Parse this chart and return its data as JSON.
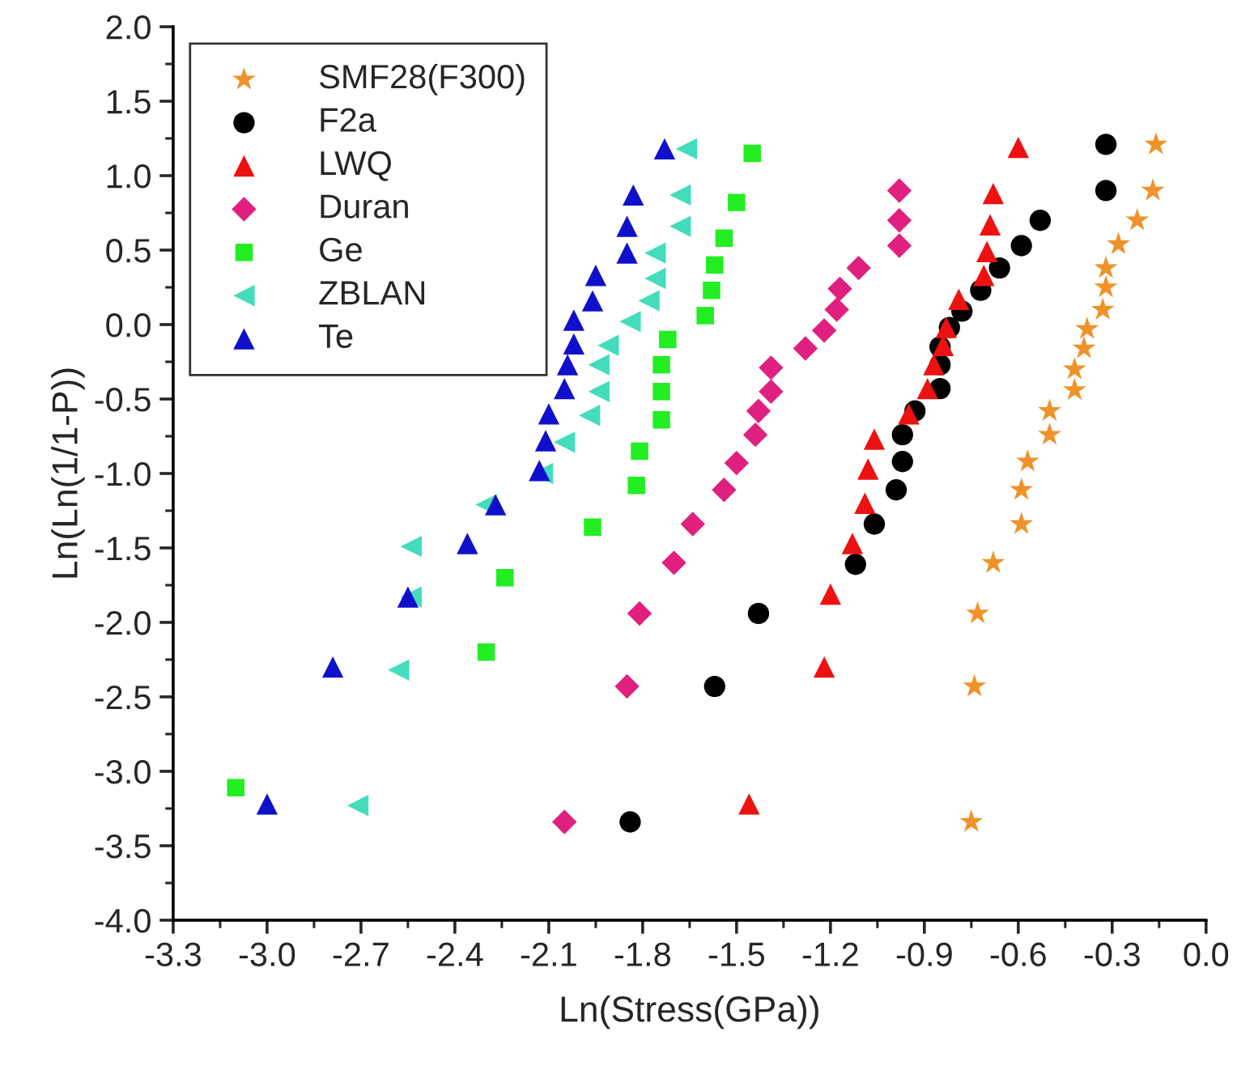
{
  "chart_data": {
    "type": "scatter",
    "xlabel": "Ln(Stress(GPa))",
    "ylabel": "Ln(Ln(1/1-P))",
    "xlim": [
      -3.3,
      0.0
    ],
    "xticks": [
      {
        "value": -3.3,
        "label": "-3.3"
      },
      {
        "value": -3.0,
        "label": "-3.0"
      },
      {
        "value": -2.7,
        "label": "-2.7"
      },
      {
        "value": -2.4,
        "label": "-2.4"
      },
      {
        "value": -2.1,
        "label": "-2.1"
      },
      {
        "value": -1.8,
        "label": "-1.8"
      },
      {
        "value": -1.5,
        "label": "-1.5"
      },
      {
        "value": -1.2,
        "label": "-1.2"
      },
      {
        "value": -0.9,
        "label": "-0.9"
      },
      {
        "value": -0.6,
        "label": "-0.6"
      },
      {
        "value": -0.3,
        "label": "-0.3"
      },
      {
        "value": 0.0,
        "label": "0.0"
      }
    ],
    "ylim": [
      -4.0,
      2.0
    ],
    "yticks": [
      {
        "value": -4.0,
        "label": "-4.0"
      },
      {
        "value": -3.5,
        "label": "-3.5"
      },
      {
        "value": -3.0,
        "label": "-3.0"
      },
      {
        "value": -2.5,
        "label": "-2.5"
      },
      {
        "value": -2.0,
        "label": "-2.0"
      },
      {
        "value": -1.5,
        "label": "-1.5"
      },
      {
        "value": -1.0,
        "label": "-1.0"
      },
      {
        "value": -0.5,
        "label": "-0.5"
      },
      {
        "value": 0.0,
        "label": "0.0"
      },
      {
        "value": 0.5,
        "label": "0.5"
      },
      {
        "value": 1.0,
        "label": "1.0"
      },
      {
        "value": 1.5,
        "label": "1.5"
      },
      {
        "value": 2.0,
        "label": "2.0"
      }
    ],
    "grid": false,
    "legend": "top left",
    "series": [
      {
        "name": "SMF28(F300)",
        "color": "#f0922a",
        "marker": "star",
        "x": [
          -0.16,
          -0.17,
          -0.22,
          -0.28,
          -0.32,
          -0.32,
          -0.33,
          -0.38,
          -0.39,
          -0.42,
          -0.42,
          -0.5,
          -0.5,
          -0.57,
          -0.59,
          -0.59,
          -0.68,
          -0.73,
          -0.74,
          -0.75
        ],
        "values": [
          1.21,
          0.9,
          0.7,
          0.54,
          0.38,
          0.25,
          0.1,
          -0.03,
          -0.16,
          -0.3,
          -0.44,
          -0.58,
          -0.74,
          -0.92,
          -1.11,
          -1.34,
          -1.6,
          -1.94,
          -2.43,
          -3.34
        ]
      },
      {
        "name": "F2a",
        "color": "#000000",
        "marker": "circle",
        "x": [
          -0.32,
          -0.32,
          -0.53,
          -0.59,
          -0.66,
          -0.72,
          -0.78,
          -0.82,
          -0.85,
          -0.85,
          -0.85,
          -0.93,
          -0.97,
          -0.97,
          -0.99,
          -1.06,
          -1.12,
          -1.43,
          -1.57,
          -1.84
        ],
        "values": [
          1.21,
          0.9,
          0.7,
          0.53,
          0.38,
          0.23,
          0.09,
          -0.02,
          -0.15,
          -0.27,
          -0.43,
          -0.58,
          -0.74,
          -0.92,
          -1.11,
          -1.34,
          -1.61,
          -1.94,
          -2.43,
          -3.34
        ]
      },
      {
        "name": "LWQ",
        "color": "#ee1111",
        "marker": "triangle",
        "x": [
          -0.6,
          -0.68,
          -0.69,
          -0.7,
          -0.71,
          -0.79,
          -0.83,
          -0.84,
          -0.87,
          -0.89,
          -0.95,
          -1.06,
          -1.08,
          -1.09,
          -1.13,
          -1.2,
          -1.22,
          -1.46
        ],
        "values": [
          1.19,
          0.88,
          0.67,
          0.49,
          0.33,
          0.17,
          -0.02,
          -0.14,
          -0.27,
          -0.43,
          -0.6,
          -0.77,
          -0.97,
          -1.2,
          -1.47,
          -1.81,
          -2.3,
          -3.22
        ]
      },
      {
        "name": "Duran",
        "color": "#e0207f",
        "marker": "diamond",
        "x": [
          -0.98,
          -0.98,
          -0.98,
          -1.11,
          -1.17,
          -1.18,
          -1.22,
          -1.28,
          -1.39,
          -1.39,
          -1.43,
          -1.44,
          -1.5,
          -1.54,
          -1.64,
          -1.7,
          -1.81,
          -1.85,
          -2.05
        ],
        "values": [
          0.9,
          0.7,
          0.53,
          0.38,
          0.24,
          0.1,
          -0.04,
          -0.16,
          -0.29,
          -0.45,
          -0.58,
          -0.74,
          -0.93,
          -1.11,
          -1.34,
          -1.6,
          -1.94,
          -2.43,
          -3.34
        ]
      },
      {
        "name": "Ge",
        "color": "#22ee22",
        "marker": "square",
        "x": [
          -1.45,
          -1.5,
          -1.54,
          -1.57,
          -1.58,
          -1.6,
          -1.72,
          -1.74,
          -1.74,
          -1.74,
          -1.81,
          -1.82,
          -1.96,
          -2.24,
          -2.3,
          -3.1
        ],
        "values": [
          1.15,
          0.82,
          0.58,
          0.4,
          0.23,
          0.06,
          -0.1,
          -0.27,
          -0.45,
          -0.64,
          -0.85,
          -1.08,
          -1.36,
          -1.7,
          -2.2,
          -3.11
        ]
      },
      {
        "name": "ZBLAN",
        "color": "#44ddbb",
        "marker": "triangle_left",
        "x": [
          -1.66,
          -1.68,
          -1.68,
          -1.76,
          -1.76,
          -1.78,
          -1.84,
          -1.91,
          -1.94,
          -1.94,
          -1.97,
          -2.05,
          -2.12,
          -2.3,
          -2.54,
          -2.54,
          -2.58,
          -2.71
        ],
        "values": [
          1.18,
          0.87,
          0.66,
          0.48,
          0.31,
          0.16,
          0.02,
          -0.14,
          -0.27,
          -0.45,
          -0.61,
          -0.79,
          -1.0,
          -1.21,
          -1.49,
          -1.83,
          -2.32,
          -3.23
        ]
      },
      {
        "name": "Te",
        "color": "#1010cc",
        "marker": "triangle",
        "x": [
          -1.73,
          -1.83,
          -1.85,
          -1.85,
          -1.95,
          -1.96,
          -2.02,
          -2.02,
          -2.04,
          -2.05,
          -2.1,
          -2.11,
          -2.13,
          -2.27,
          -2.36,
          -2.55,
          -2.79,
          -3.0
        ],
        "values": [
          1.18,
          0.87,
          0.66,
          0.48,
          0.33,
          0.16,
          0.03,
          -0.13,
          -0.27,
          -0.43,
          -0.6,
          -0.78,
          -0.98,
          -1.21,
          -1.47,
          -1.83,
          -2.3,
          -3.22
        ]
      }
    ]
  }
}
